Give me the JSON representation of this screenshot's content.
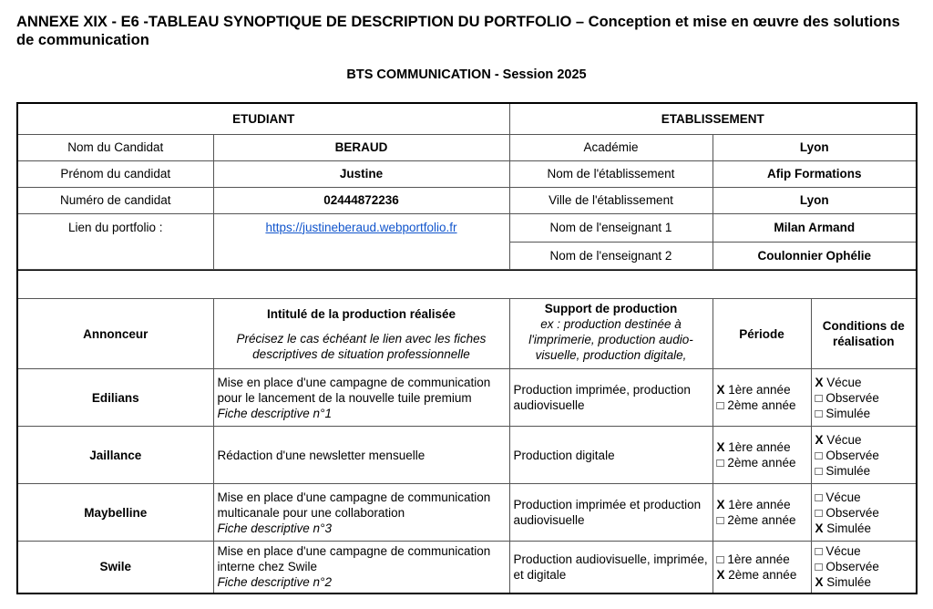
{
  "title": "ANNEXE XIX - E6 -TABLEAU SYNOPTIQUE DE DESCRIPTION DU PORTFOLIO – Conception et mise en œuvre des solutions de communication",
  "subtitle": "BTS COMMUNICATION - Session 2025",
  "student": {
    "heading": "ETUDIANT",
    "rows": [
      {
        "label": "Nom du Candidat",
        "value": "BERAUD"
      },
      {
        "label": "Prénom du candidat",
        "value": "Justine"
      },
      {
        "label": "Numéro de candidat",
        "value": "02444872236"
      },
      {
        "label": "Lien du portfolio :",
        "value": "https://justineberaud.webportfolio.fr"
      }
    ]
  },
  "school": {
    "heading": "ETABLISSEMENT",
    "rows": [
      {
        "label": "Académie",
        "value": "Lyon"
      },
      {
        "label": "Nom de l'établissement",
        "value": "Afip Formations"
      },
      {
        "label": "Ville de l'établissement",
        "value": "Lyon"
      },
      {
        "label": "Nom de l'enseignant 1",
        "value": "Milan Armand"
      },
      {
        "label": "Nom de l'enseignant 2",
        "value": "Coulonnier Ophélie"
      }
    ]
  },
  "headers": {
    "annonceur": "Annonceur",
    "intitule": "Intitulé de la production réalisée",
    "intitule_note": "Précisez le cas échéant le lien avec les fiches descriptives de situation professionnelle",
    "support": "Support de production",
    "support_note": "ex : production destinée à l'imprimerie, production audio-visuelle, production digitale,",
    "periode": "Période",
    "conditions": "Conditions de réalisation"
  },
  "rows": [
    {
      "annonceur": "Edilians",
      "intitule": "Mise en place d'une campagne de communication pour le lancement de la nouvelle tuile premium",
      "fiche": "Fiche descriptive n°1",
      "support": "Production imprimée, production audiovisuelle",
      "periode": [
        "X 1ère année",
        "□ 2ème année"
      ],
      "conditions": [
        "X Vécue",
        "□ Observée",
        "□ Simulée"
      ]
    },
    {
      "annonceur": "Jaillance",
      "intitule": "Rédaction d'une newsletter mensuelle",
      "fiche": "",
      "support": "Production digitale",
      "periode": [
        "X 1ère année",
        "□ 2ème année"
      ],
      "conditions": [
        "X Vécue",
        "□ Observée",
        "□ Simulée"
      ]
    },
    {
      "annonceur": "Maybelline",
      "intitule": "Mise en place d'une campagne de communication multicanale pour une collaboration",
      "fiche": "Fiche descriptive n°3",
      "support": "Production imprimée et production audiovisuelle",
      "periode": [
        "X 1ère année",
        "□ 2ème année"
      ],
      "conditions": [
        "□ Vécue",
        "□ Observée",
        "X Simulée"
      ]
    },
    {
      "annonceur": "Swile",
      "intitule": "Mise en place d'une campagne de communication interne chez Swile",
      "fiche": "Fiche descriptive n°2",
      "support": "Production audiovisuelle, imprimée, et digitale",
      "periode": [
        "□ 1ère année",
        "X 2ème année"
      ],
      "conditions": [
        "□ Vécue",
        "□ Observée",
        "X Simulée"
      ]
    }
  ]
}
